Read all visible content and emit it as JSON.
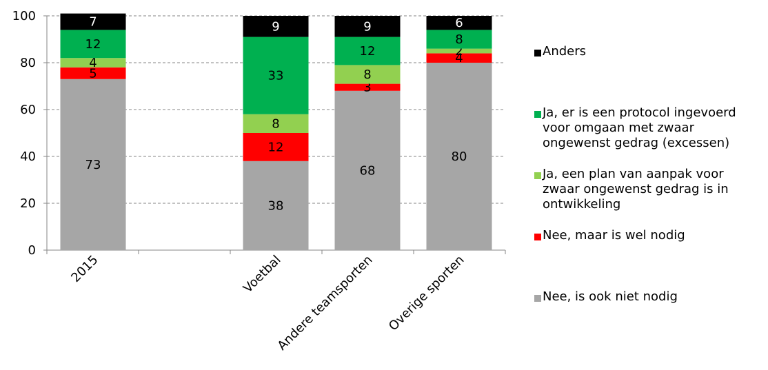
{
  "chart_data": {
    "type": "bar",
    "stacked": true,
    "categories": [
      "2015",
      "Voetbal",
      "Andere teamsporten",
      "Overige sporten"
    ],
    "ylim": [
      0,
      100
    ],
    "yticks": [
      0,
      20,
      40,
      60,
      80,
      100
    ],
    "grid": true,
    "legend_position": "right",
    "series": [
      {
        "name": "Nee, is ook niet nodig",
        "color": "#a6a6a6",
        "values": [
          73,
          38,
          68,
          80
        ]
      },
      {
        "name": "Nee, maar is wel nodig",
        "color": "#ff0000",
        "values": [
          5,
          12,
          3,
          4
        ]
      },
      {
        "name": "Ja, een plan van aanpak voor zwaar ongewenst gedrag is in ontwikkeling",
        "color": "#92d050",
        "values": [
          4,
          8,
          8,
          2
        ]
      },
      {
        "name": "Ja, er is een protocol ingevoerd voor omgaan met zwaar ongewenst gedrag  (excessen)",
        "color": "#00b050",
        "values": [
          12,
          33,
          12,
          8
        ]
      },
      {
        "name": "Anders",
        "color": "#000000",
        "values": [
          7,
          9,
          9,
          6
        ]
      }
    ]
  },
  "legend": [
    {
      "label": "Anders",
      "color": "#000000"
    },
    {
      "label": "Ja, er is een protocol ingevoerd\nvoor omgaan met zwaar\nongewenst gedrag  (excessen)",
      "color": "#00b050"
    },
    {
      "label": "Ja, een plan van aanpak voor\nzwaar ongewenst gedrag is in\nontwikkeling",
      "color": "#92d050"
    },
    {
      "label": "Nee, maar is wel nodig",
      "color": "#ff0000"
    },
    {
      "label": "Nee, is ook niet nodig",
      "color": "#a6a6a6"
    }
  ]
}
